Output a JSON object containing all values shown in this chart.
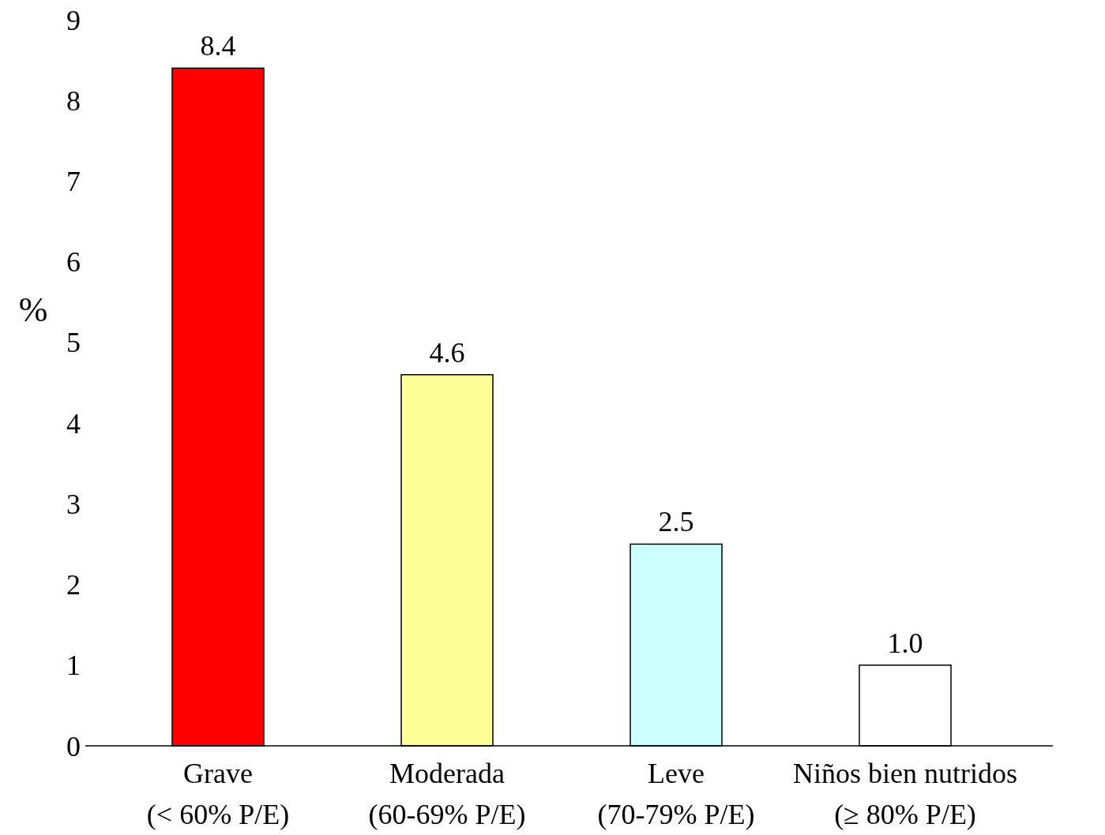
{
  "chart_data": {
    "type": "bar",
    "ylabel": "%",
    "categories": [
      "Grave\n(< 60% P/E)",
      "Moderada\n(60-69% P/E)",
      "Leve\n(70-79% P/E)",
      "Niños bien nutridos\n(≥ 80% P/E)"
    ],
    "values": [
      8.4,
      4.6,
      2.5,
      1.0
    ],
    "colors": [
      "#ff0000",
      "#ffff99",
      "#ccffff",
      "#ffffff"
    ],
    "value_labels": [
      "8.4",
      "4.6",
      "2.5",
      "1.0"
    ],
    "ylim": [
      0,
      9
    ],
    "yticks": [
      0,
      1,
      2,
      3,
      4,
      5,
      6,
      7,
      8,
      9
    ]
  }
}
